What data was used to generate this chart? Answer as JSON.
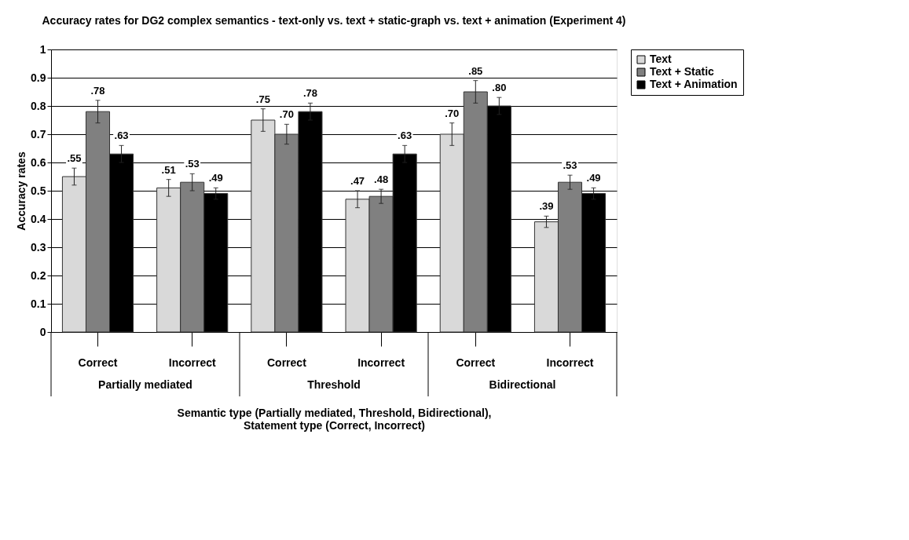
{
  "chart_data": {
    "type": "bar",
    "title": "Accuracy rates for DG2 complex semantics - text-only vs. text + static-graph vs. text + animation (Experiment 4)",
    "xlabel": "Semantic type (Partially mediated, Threshold, Bidirectional),\nStatement type (Correct, Incorrect)",
    "ylabel": "Accuracy rates",
    "categories": [
      "Correct",
      "Incorrect",
      "Correct",
      "Incorrect",
      "Correct",
      "Incorrect"
    ],
    "annotations": [
      "Partially mediated",
      "Threshold",
      "Bidirectional"
    ],
    "series": [
      {
        "name": "Text",
        "color": "#d9d9d9",
        "values": [
          0.55,
          0.51,
          0.75,
          0.47,
          0.7,
          0.39
        ],
        "errors": [
          0.03,
          0.03,
          0.04,
          0.03,
          0.04,
          0.02
        ],
        "value_labels": [
          ".55",
          ".51",
          ".75",
          ".47",
          ".70",
          ".39"
        ]
      },
      {
        "name": "Text + Static",
        "color": "#808080",
        "values": [
          0.78,
          0.53,
          0.7,
          0.48,
          0.85,
          0.53
        ],
        "errors": [
          0.04,
          0.03,
          0.035,
          0.025,
          0.04,
          0.025
        ],
        "value_labels": [
          ".78",
          ".53",
          ".70",
          ".48",
          ".85",
          ".53"
        ]
      },
      {
        "name": "Text + Animation",
        "color": "#000000",
        "values": [
          0.63,
          0.49,
          0.78,
          0.63,
          0.8,
          0.49
        ],
        "errors": [
          0.03,
          0.02,
          0.03,
          0.03,
          0.03,
          0.02
        ],
        "value_labels": [
          ".63",
          ".49",
          ".78",
          ".63",
          ".80",
          ".49"
        ]
      }
    ],
    "ylim": [
      0,
      1
    ],
    "yticks": [
      0,
      0.1,
      0.2,
      0.3,
      0.4,
      0.5,
      0.6,
      0.7,
      0.8,
      0.9,
      1
    ],
    "grid": "y",
    "legend": "right"
  }
}
